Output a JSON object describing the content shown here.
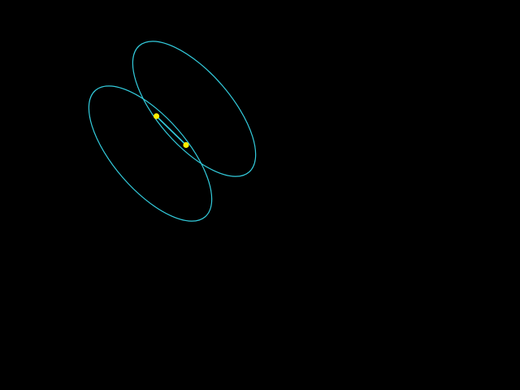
{
  "scene": {
    "background_color": "#000000",
    "outline_color": "#33ccdd",
    "point_color": "#ffee00",
    "shapes": [
      {
        "kind": "ellipse",
        "name": "upper-right-ellipse"
      },
      {
        "kind": "ellipse",
        "name": "lower-left-ellipse"
      }
    ],
    "points": [
      {
        "name": "contact-point-upper"
      },
      {
        "name": "contact-point-lower"
      }
    ],
    "connector": {
      "kind": "line-segment",
      "joins": [
        "contact-point-upper",
        "contact-point-lower"
      ]
    }
  }
}
